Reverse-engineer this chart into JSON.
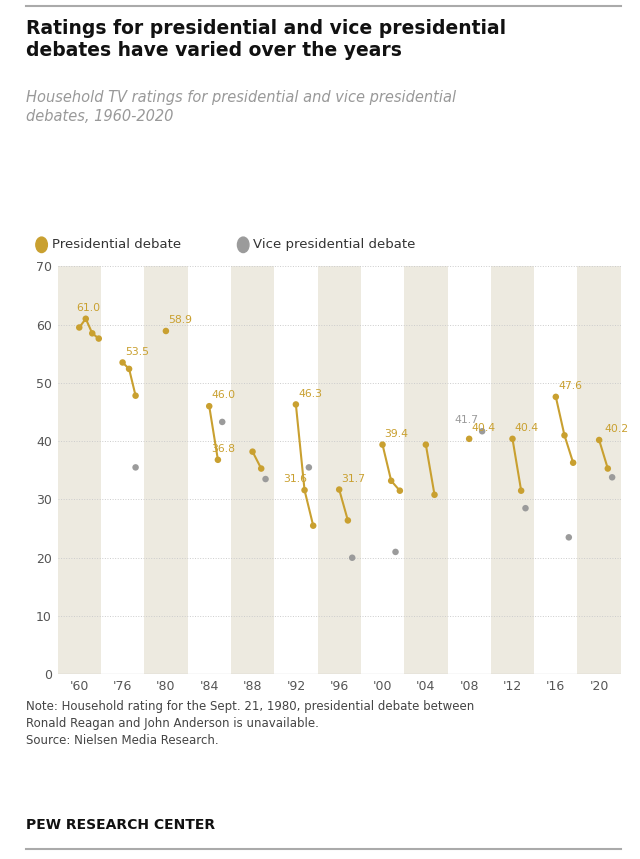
{
  "title_line1": "Ratings for presidential and vice presidential",
  "title_line2": "debates have varied over the years",
  "subtitle": "Household TV ratings for presidential and vice presidential\ndebates, 1960-2020",
  "note": "Note: Household rating for the Sept. 21, 1980, presidential debate between\nRonald Reagan and John Anderson is unavailable.\nSource: Nielsen Media Research.",
  "footer": "PEW RESEARCH CENTER",
  "pres_color": "#C9A030",
  "vp_color": "#9B9B9B",
  "bg_color": "#FFFFFF",
  "strip_color": "#EDEAE0",
  "tick_labels": [
    "'60",
    "'76",
    "'80",
    "'84",
    "'88",
    "'92",
    "'96",
    "'00",
    "'04",
    "'08",
    "'12",
    "'16",
    "'20"
  ],
  "yticks": [
    0,
    10,
    20,
    30,
    40,
    50,
    60,
    70
  ],
  "ylim": [
    0,
    70
  ],
  "strip_seq": [
    1,
    0,
    1,
    0,
    1,
    0,
    1,
    0,
    1,
    0,
    1,
    0,
    1
  ],
  "pres_groups": [
    [
      [
        0.0,
        59.5
      ],
      [
        0.15,
        61.0
      ],
      [
        0.3,
        58.5
      ],
      [
        0.45,
        57.6
      ]
    ],
    [
      [
        1.0,
        53.5
      ],
      [
        1.15,
        52.4
      ],
      [
        1.3,
        47.8
      ]
    ],
    [
      [
        2.0,
        58.9
      ]
    ],
    [
      [
        3.0,
        46.0
      ],
      [
        3.2,
        36.8
      ]
    ],
    [
      [
        4.0,
        38.2
      ],
      [
        4.2,
        35.3
      ]
    ],
    [
      [
        5.0,
        46.3
      ],
      [
        5.2,
        31.6
      ],
      [
        5.4,
        25.5
      ]
    ],
    [
      [
        6.0,
        31.7
      ],
      [
        6.2,
        26.4
      ]
    ],
    [
      [
        7.0,
        39.4
      ],
      [
        7.2,
        33.2
      ],
      [
        7.4,
        31.5
      ]
    ],
    [
      [
        8.0,
        39.4
      ],
      [
        8.2,
        30.8
      ]
    ],
    [
      [
        9.0,
        40.4
      ]
    ],
    [
      [
        10.0,
        40.4
      ],
      [
        10.2,
        31.5
      ]
    ],
    [
      [
        11.0,
        47.6
      ],
      [
        11.2,
        41.0
      ],
      [
        11.4,
        36.3
      ]
    ],
    [
      [
        12.0,
        40.2
      ],
      [
        12.2,
        35.3
      ]
    ]
  ],
  "vp_points": [
    [
      1.3,
      35.5
    ],
    [
      3.3,
      43.3
    ],
    [
      4.3,
      33.5
    ],
    [
      5.3,
      35.5
    ],
    [
      6.3,
      20.0
    ],
    [
      7.3,
      21.0
    ],
    [
      9.3,
      41.7
    ],
    [
      10.3,
      28.5
    ],
    [
      11.3,
      23.5
    ],
    [
      12.3,
      33.8
    ]
  ],
  "annot_pres": [
    [
      0.15,
      61.0,
      "61.0",
      -0.22,
      1.0
    ],
    [
      1.0,
      53.5,
      "53.5",
      0.05,
      1.0
    ],
    [
      2.0,
      58.9,
      "58.9",
      0.05,
      1.0
    ],
    [
      3.0,
      46.0,
      "46.0",
      0.05,
      1.0
    ],
    [
      3.0,
      36.8,
      "36.8",
      0.05,
      1.0
    ],
    [
      5.0,
      46.3,
      "46.3",
      0.05,
      1.0
    ],
    [
      5.2,
      31.6,
      "31.6",
      -0.5,
      1.0
    ],
    [
      6.0,
      31.7,
      "31.7",
      0.05,
      1.0
    ],
    [
      7.0,
      39.4,
      "39.4",
      0.05,
      1.0
    ],
    [
      9.0,
      40.4,
      "40.4",
      0.05,
      1.0
    ],
    [
      10.0,
      40.4,
      "40.4",
      0.05,
      1.0
    ],
    [
      11.0,
      47.6,
      "47.6",
      0.05,
      1.0
    ],
    [
      12.0,
      40.2,
      "40.2",
      0.12,
      1.0
    ]
  ],
  "annot_vp": [
    [
      9.3,
      41.7,
      "41.7",
      -0.65,
      1.0
    ]
  ]
}
